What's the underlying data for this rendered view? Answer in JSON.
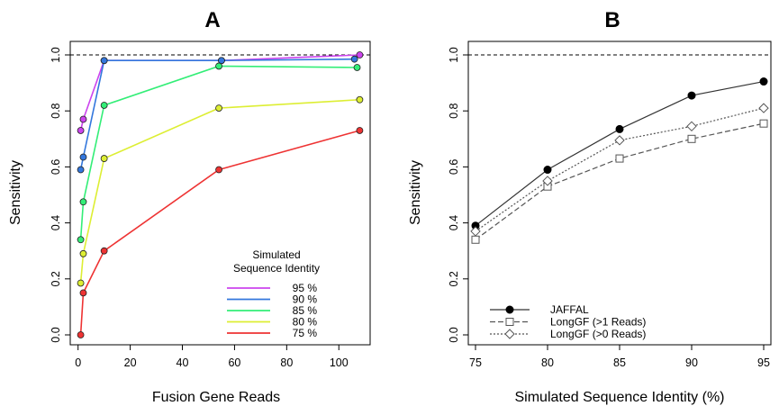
{
  "chart_data": [
    {
      "type": "line",
      "title": "A",
      "xlabel": "Fusion Gene Reads",
      "ylabel": "Sensitivity",
      "xlim": [
        -3,
        112
      ],
      "ylim": [
        0,
        1.0
      ],
      "xticks": [
        0,
        20,
        40,
        60,
        80,
        100
      ],
      "yticks": [
        0.0,
        0.2,
        0.4,
        0.6,
        0.8,
        1.0
      ],
      "xtick_labels": [
        "0",
        "20",
        "40",
        "60",
        "80",
        "100"
      ],
      "ytick_labels": [
        "0.0",
        "0.2",
        "0.4",
        "0.6",
        "0.8",
        "1.0"
      ],
      "reference_line": 1.0,
      "legend_title_line1": "Simulated",
      "legend_title_line2": "Sequence Identity",
      "series": [
        {
          "name": "95 %",
          "color": "#cc44ee",
          "points": [
            [
              1,
              0.73
            ],
            [
              2,
              0.77
            ],
            [
              10,
              0.98
            ],
            [
              55,
              0.98
            ],
            [
              108,
              1.0
            ]
          ]
        },
        {
          "name": "90 %",
          "color": "#3377dd",
          "points": [
            [
              1,
              0.59
            ],
            [
              2,
              0.635
            ],
            [
              10,
              0.98
            ],
            [
              55,
              0.98
            ],
            [
              106,
              0.985
            ]
          ]
        },
        {
          "name": "85 %",
          "color": "#33ee77",
          "points": [
            [
              1,
              0.34
            ],
            [
              2,
              0.475
            ],
            [
              10,
              0.82
            ],
            [
              54,
              0.96
            ],
            [
              107,
              0.955
            ]
          ]
        },
        {
          "name": "80 %",
          "color": "#ddee33",
          "points": [
            [
              1,
              0.185
            ],
            [
              2,
              0.29
            ],
            [
              10,
              0.63
            ],
            [
              54,
              0.81
            ],
            [
              108,
              0.84
            ]
          ]
        },
        {
          "name": "75 %",
          "color": "#ee3333",
          "points": [
            [
              1,
              0.0
            ],
            [
              2,
              0.15
            ],
            [
              10,
              0.3
            ],
            [
              54,
              0.59
            ],
            [
              108,
              0.73
            ]
          ]
        }
      ]
    },
    {
      "type": "line",
      "title": "B",
      "xlabel": "Simulated Sequence Identity (%)",
      "ylabel": "Sensitivity",
      "xlim": [
        74.5,
        95.5
      ],
      "ylim": [
        0,
        1.0
      ],
      "xticks": [
        75,
        80,
        85,
        90,
        95
      ],
      "yticks": [
        0.0,
        0.2,
        0.4,
        0.6,
        0.8,
        1.0
      ],
      "xtick_labels": [
        "75",
        "80",
        "85",
        "90",
        "95"
      ],
      "ytick_labels": [
        "0.0",
        "0.2",
        "0.4",
        "0.6",
        "0.8",
        "1.0"
      ],
      "reference_line": 1.0,
      "x": [
        75,
        80,
        85,
        90,
        95
      ],
      "series": [
        {
          "name": "JAFFAL",
          "style": "solid",
          "marker": "filled-circle",
          "values": [
            0.39,
            0.59,
            0.735,
            0.855,
            0.905
          ]
        },
        {
          "name": "LongGF (>1 Reads)",
          "style": "dashed",
          "marker": "open-square",
          "values": [
            0.34,
            0.53,
            0.63,
            0.7,
            0.755
          ]
        },
        {
          "name": "LongGF (>0 Reads)",
          "style": "dotted",
          "marker": "open-diamond",
          "values": [
            0.37,
            0.55,
            0.695,
            0.745,
            0.81
          ]
        }
      ]
    }
  ]
}
